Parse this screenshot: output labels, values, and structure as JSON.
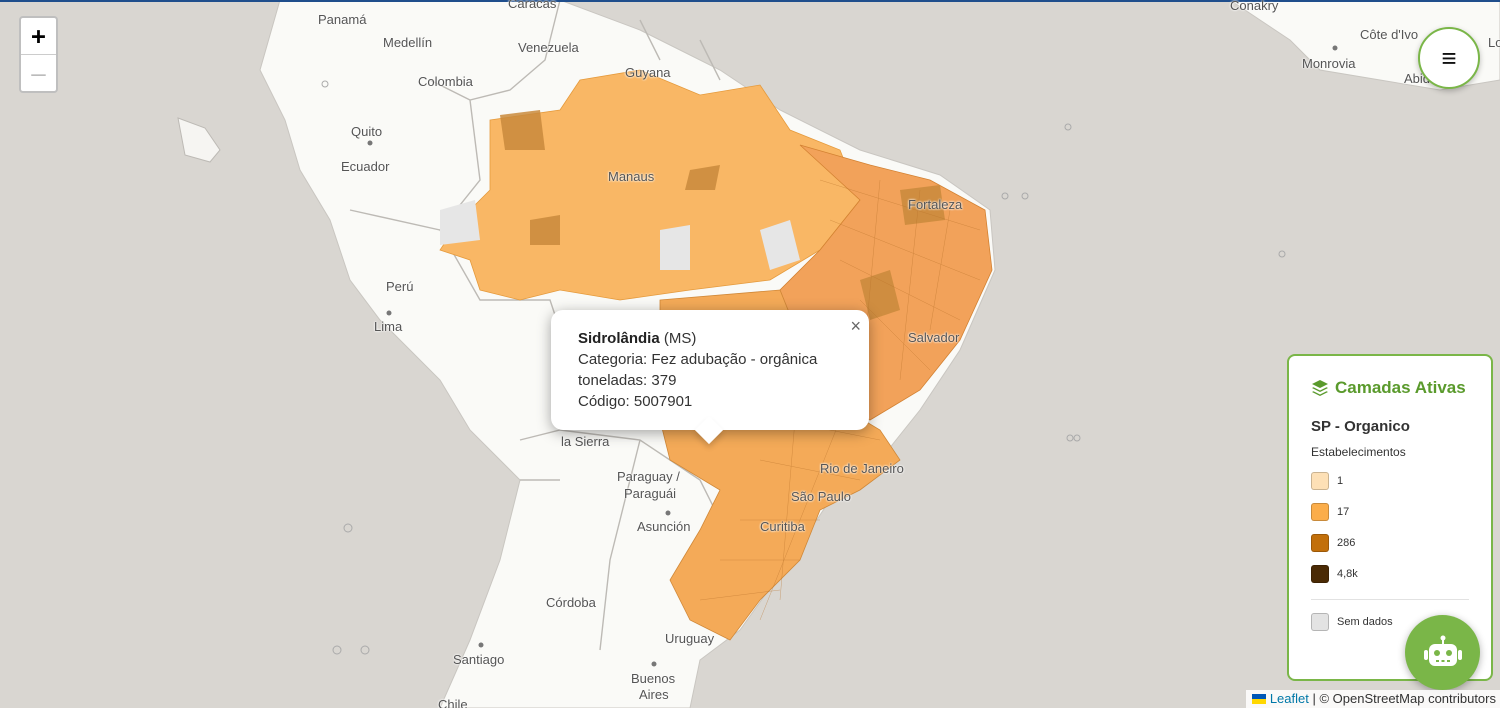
{
  "map": {
    "places": [
      {
        "id": "caracas",
        "label": "Caracas"
      },
      {
        "id": "panama",
        "label": "Panamá"
      },
      {
        "id": "medellin",
        "label": "Medellín"
      },
      {
        "id": "venezuela",
        "label": "Venezuela"
      },
      {
        "id": "colombia",
        "label": "Colombia"
      },
      {
        "id": "guyana",
        "label": "Guyana"
      },
      {
        "id": "quito",
        "label": "Quito"
      },
      {
        "id": "ecuador",
        "label": "Ecuador"
      },
      {
        "id": "manaus",
        "label": "Manaus"
      },
      {
        "id": "fortaleza",
        "label": "Fortaleza"
      },
      {
        "id": "peru",
        "label": "Perú"
      },
      {
        "id": "lima",
        "label": "Lima"
      },
      {
        "id": "salvador",
        "label": "Salvador"
      },
      {
        "id": "lasierra",
        "label": "la Sierra"
      },
      {
        "id": "paraguay1",
        "label": "Paraguay /"
      },
      {
        "id": "paraguay2",
        "label": "Paraguái"
      },
      {
        "id": "riojaneiro",
        "label": "Rio de Janeiro"
      },
      {
        "id": "saopaulo",
        "label": "São Paulo"
      },
      {
        "id": "asuncion",
        "label": "Asunción"
      },
      {
        "id": "curitiba",
        "label": "Curitiba"
      },
      {
        "id": "cordoba",
        "label": "Córdoba"
      },
      {
        "id": "uruguay",
        "label": "Uruguay"
      },
      {
        "id": "santiago",
        "label": "Santiago"
      },
      {
        "id": "buenos1",
        "label": "Buenos"
      },
      {
        "id": "buenos2",
        "label": "Aires"
      },
      {
        "id": "chile",
        "label": "Chile"
      },
      {
        "id": "conakry",
        "label": "Conakry"
      },
      {
        "id": "cotedivoire",
        "label": "Côte d'Ivo"
      },
      {
        "id": "monrovia",
        "label": "Monrovia"
      },
      {
        "id": "abidjan",
        "label": "Abid"
      },
      {
        "id": "lo",
        "label": "Lo"
      }
    ]
  },
  "zoom": {
    "in_label": "+",
    "out_label": "—"
  },
  "menu": {
    "icon": "menu-icon",
    "label": "≡"
  },
  "popup": {
    "name": "Sidrolândia",
    "state": "(MS)",
    "categoria": "Categoria: Fez adubação - orgânica",
    "toneladas": "toneladas: 379",
    "codigo": "Código: 5007901",
    "close": "×"
  },
  "legend": {
    "title": "Camadas Ativas",
    "layer": "SP - Organico",
    "variable": "Estabelecimentos",
    "items": [
      {
        "label": "1",
        "color": "#fde0b6"
      },
      {
        "label": "17",
        "color": "#fbad4a"
      },
      {
        "label": "286",
        "color": "#c26f0a"
      },
      {
        "label": "4,8k",
        "color": "#4a2a05"
      }
    ],
    "nodata": {
      "label": "Sem dados",
      "color": "#e3e3e3"
    }
  },
  "attribution": {
    "leaflet": "Leaflet",
    "rest": "| © OpenStreetMap contributors"
  },
  "colors": {
    "accent": "#7ab648",
    "title_green": "#5a9a2c"
  }
}
